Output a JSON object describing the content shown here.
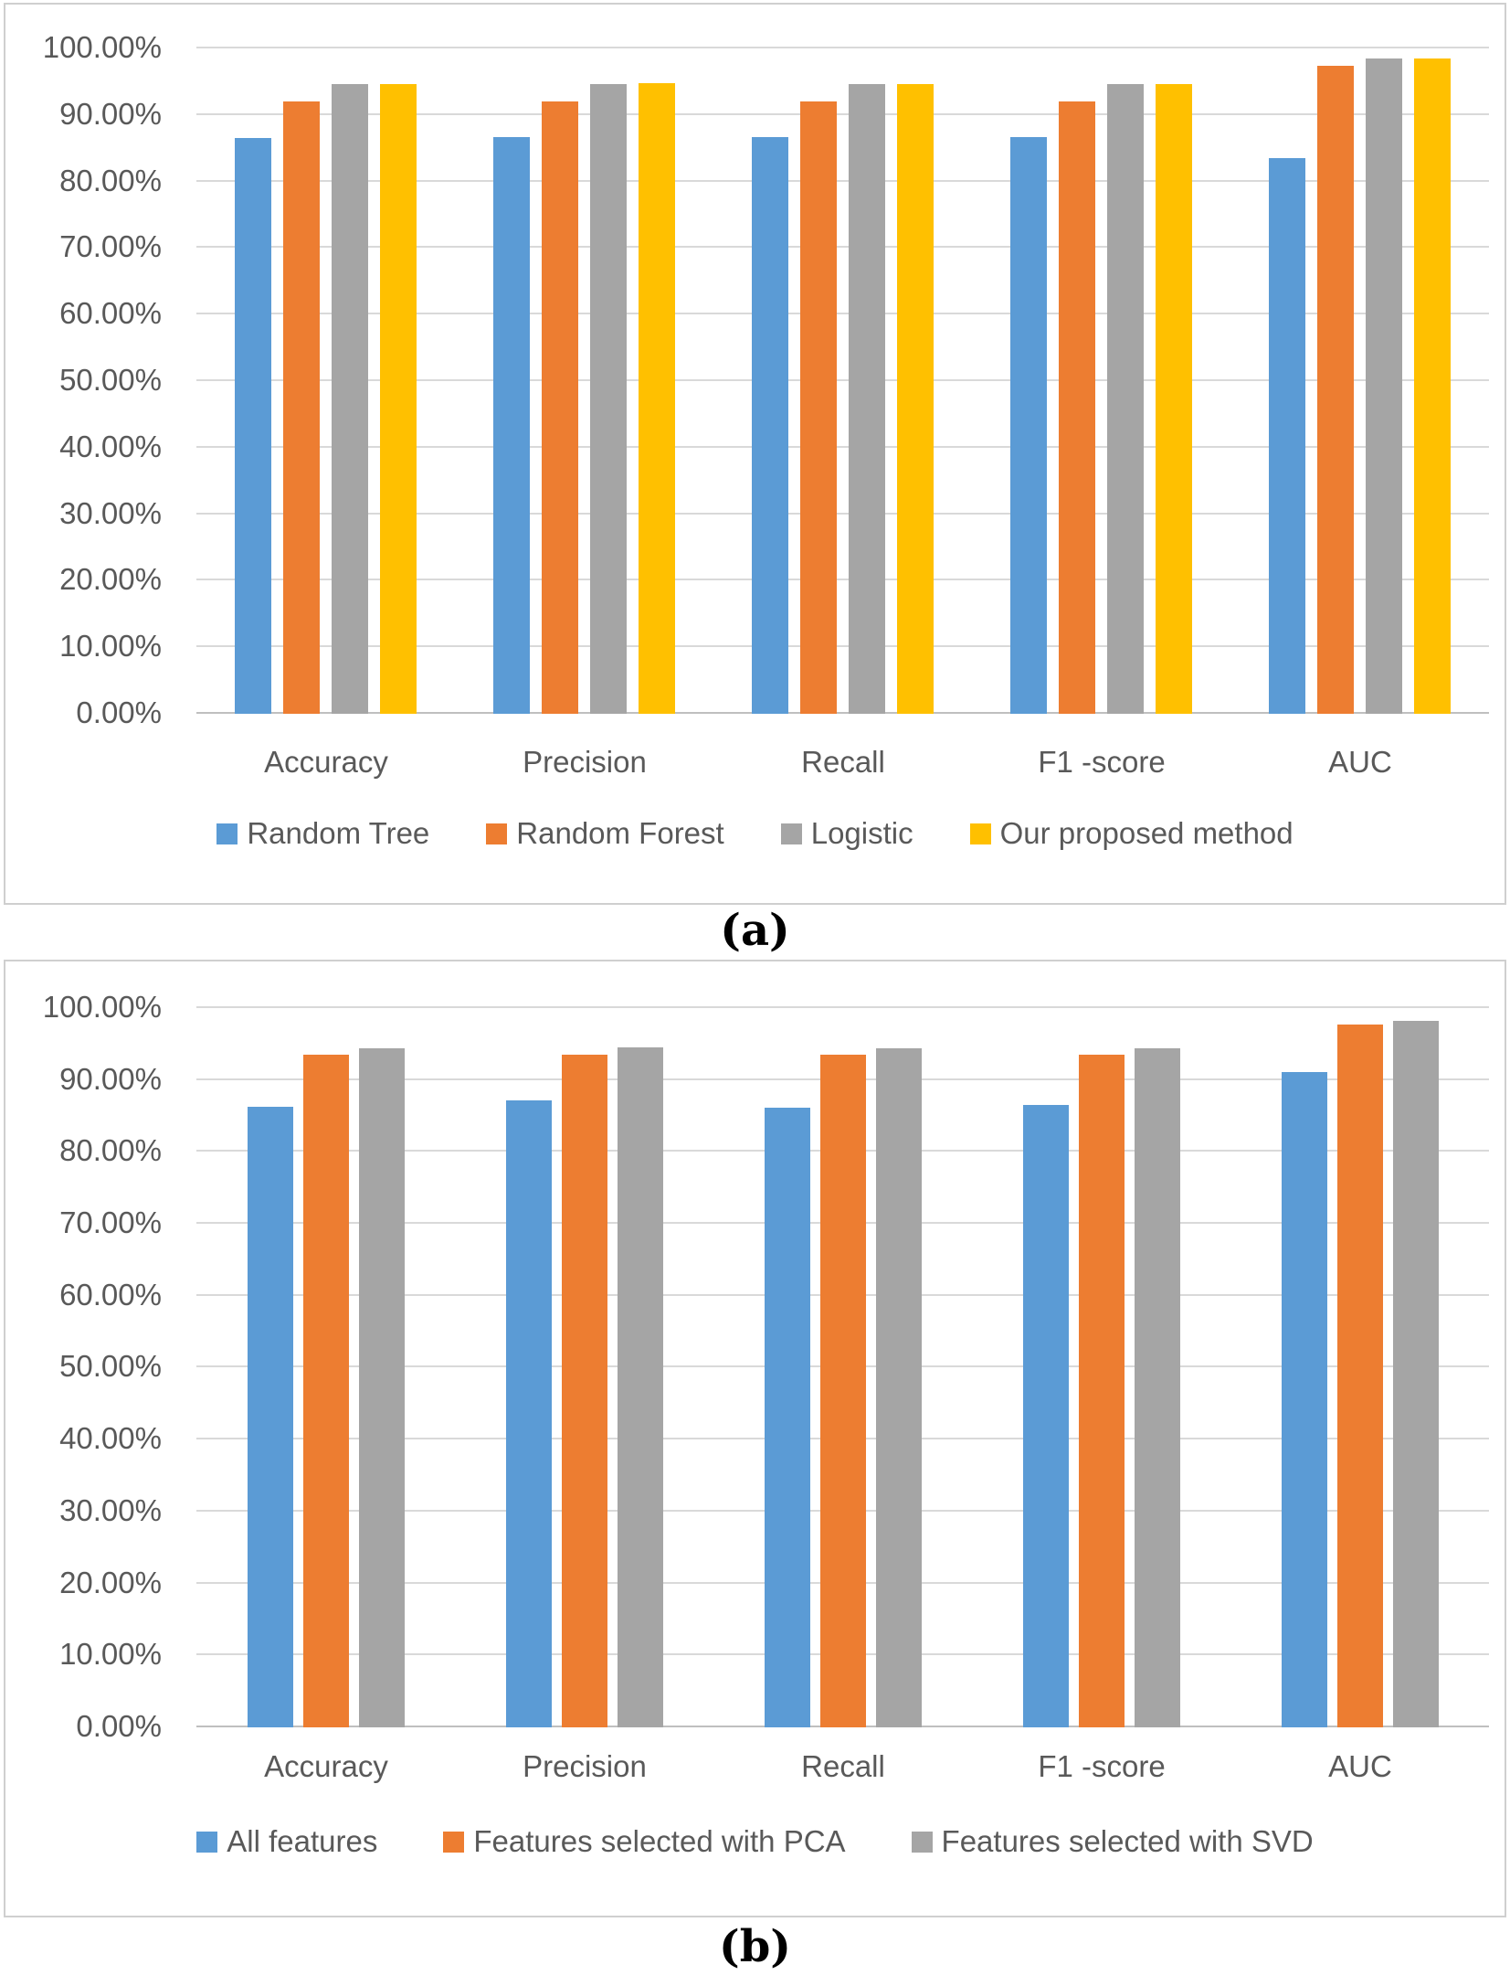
{
  "chart_data": [
    {
      "type": "bar",
      "panel_caption": "(a)",
      "title": "",
      "xlabel": "",
      "ylabel": "",
      "categories": [
        "Accuracy",
        "Precision",
        "Recall",
        "F1 -score",
        "AUC"
      ],
      "series": [
        {
          "name": "Random Tree",
          "color": "#5B9BD5",
          "values": [
            86.4,
            86.5,
            86.6,
            86.5,
            83.4
          ]
        },
        {
          "name": "Random Forest",
          "color": "#ED7D31",
          "values": [
            91.9,
            91.9,
            91.9,
            91.9,
            97.2
          ]
        },
        {
          "name": "Logistic",
          "color": "#A5A5A5",
          "values": [
            94.5,
            94.5,
            94.5,
            94.5,
            98.3
          ]
        },
        {
          "name": "Our proposed method",
          "color": "#FFC000",
          "values": [
            94.5,
            94.7,
            94.5,
            94.5,
            98.4
          ]
        }
      ],
      "ylim": [
        0,
        100
      ],
      "y_ticks": [
        "0.00%",
        "10.00%",
        "20.00%",
        "30.00%",
        "40.00%",
        "50.00%",
        "60.00%",
        "70.00%",
        "80.00%",
        "90.00%",
        "100.00%"
      ],
      "grid": true,
      "legend_position": "bottom"
    },
    {
      "type": "bar",
      "panel_caption": "(b)",
      "title": "",
      "xlabel": "",
      "ylabel": "",
      "categories": [
        "Accuracy",
        "Precision",
        "Recall",
        "F1 -score",
        "AUC"
      ],
      "series": [
        {
          "name": "All features",
          "color": "#5B9BD5",
          "values": [
            86.2,
            87.0,
            86.0,
            86.4,
            91.0
          ]
        },
        {
          "name": "Features selected with PCA",
          "color": "#ED7D31",
          "values": [
            93.4,
            93.4,
            93.4,
            93.4,
            97.6
          ]
        },
        {
          "name": "Features selected with SVD",
          "color": "#A5A5A5",
          "values": [
            94.3,
            94.4,
            94.3,
            94.3,
            98.1
          ]
        }
      ],
      "ylim": [
        0,
        100
      ],
      "y_ticks": [
        "0.00%",
        "10.00%",
        "20.00%",
        "30.00%",
        "40.00%",
        "50.00%",
        "60.00%",
        "70.00%",
        "80.00%",
        "90.00%",
        "100.00%"
      ],
      "grid": true,
      "legend_position": "bottom"
    }
  ]
}
